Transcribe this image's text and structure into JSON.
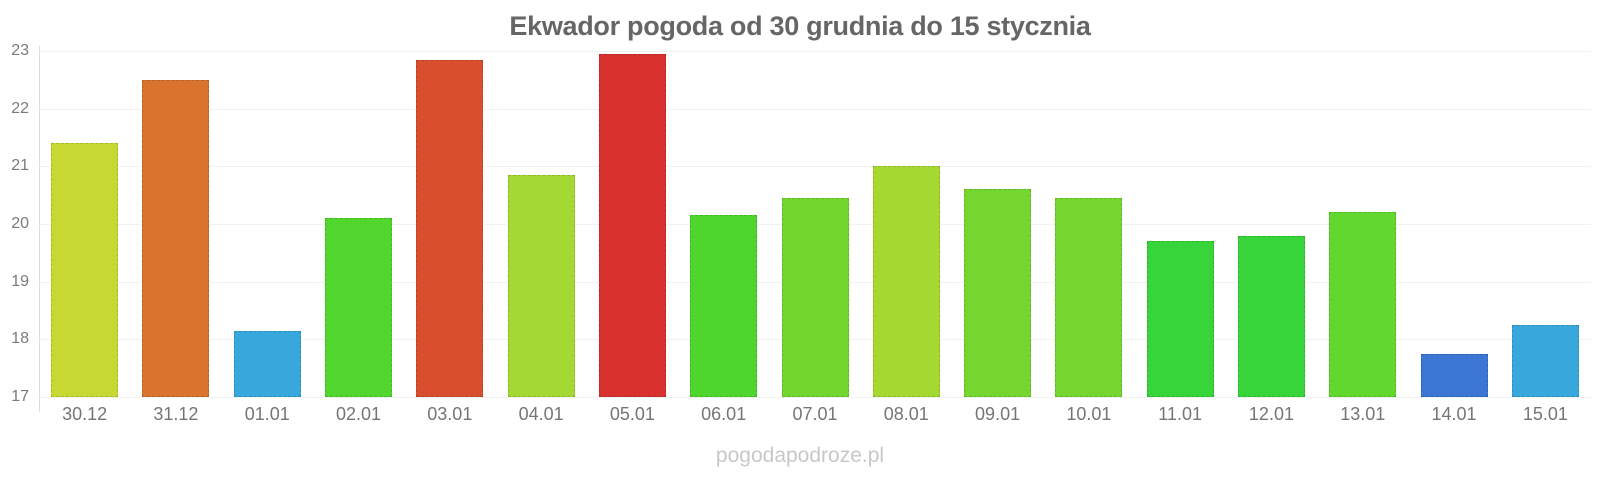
{
  "chart_data": {
    "type": "bar",
    "title": "Ekwador pogoda od 30 grudnia do 15 stycznia",
    "xlabel": "",
    "ylabel": "",
    "ylim": [
      17,
      23
    ],
    "yticks": [
      17,
      18,
      19,
      20,
      21,
      22,
      23
    ],
    "grid": true,
    "legend": false,
    "categories": [
      "30.12",
      "31.12",
      "01.01",
      "02.01",
      "03.01",
      "04.01",
      "05.01",
      "06.01",
      "07.01",
      "08.01",
      "09.01",
      "10.01",
      "11.01",
      "12.01",
      "13.01",
      "14.01",
      "15.01"
    ],
    "values": [
      21.4,
      22.5,
      18.15,
      20.1,
      22.85,
      20.85,
      22.95,
      20.15,
      20.45,
      21.0,
      20.6,
      20.45,
      19.7,
      19.8,
      20.2,
      17.75,
      18.25
    ],
    "bar_colors": [
      "#c8d832",
      "#d9732e",
      "#38a8dc",
      "#52d62e",
      "#d94f2e",
      "#a4d832",
      "#d8312e",
      "#4ed62c",
      "#72d62f",
      "#a6d832",
      "#74d62f",
      "#74d62f",
      "#37d539",
      "#37d539",
      "#62d72e",
      "#3b76d4",
      "#38a8dc"
    ]
  },
  "watermark": "pogodapodroze.pl",
  "palette": {
    "background": "#ffffff",
    "title": "#666666",
    "tick_label": "#7a7a7a",
    "x_label": "#757575",
    "gridline": "#f2f2f2",
    "axis_line": "#dcdcdc",
    "watermark": "#c8c8c8"
  }
}
